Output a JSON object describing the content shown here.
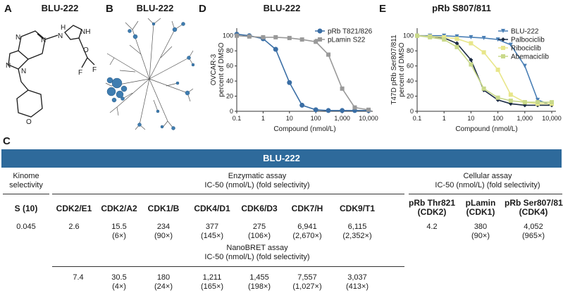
{
  "panels": {
    "A": {
      "letter": "A",
      "title": "BLU-222"
    },
    "B": {
      "letter": "B",
      "title": "BLU-222"
    },
    "D": {
      "letter": "D",
      "title": "BLU-222"
    },
    "E": {
      "letter": "E",
      "title": "pRb S807/811"
    },
    "C": {
      "letter": "C"
    }
  },
  "structure_labels": {
    "nh": "H",
    "nh_ring": "NH",
    "f_top": "F",
    "f_bottom": "F",
    "n1": "N",
    "n2": "N",
    "n3": "N",
    "n4": "N",
    "n5": "N",
    "o_ether": "O",
    "o_ring": "O"
  },
  "chart_data": [
    {
      "type": "line",
      "panel": "D",
      "title": "BLU-222",
      "xlabel": "Compound (nmol/L)",
      "ylabel": "OVCAR-3 percent of DMSO",
      "x_scale": "log",
      "xlim": [
        0.1,
        10000
      ],
      "ylim": [
        0,
        110
      ],
      "x_ticks": [
        "0.1",
        "1",
        "10",
        "100",
        "1,000",
        "10,000"
      ],
      "y_ticks": [
        "0",
        "20",
        "40",
        "60",
        "80",
        "100"
      ],
      "legend_position": "top-right",
      "series": [
        {
          "name": "pRb T821/826",
          "color": "#3a6ea5",
          "marker": "circle",
          "x": [
            0.1,
            0.3,
            1,
            3,
            10,
            30,
            100,
            300,
            1000,
            3000,
            10000
          ],
          "y": [
            102,
            100,
            96,
            82,
            38,
            8,
            2,
            1,
            1,
            1,
            1
          ]
        },
        {
          "name": "pLamin S22",
          "color": "#999999",
          "marker": "square",
          "x": [
            0.1,
            0.3,
            1,
            3,
            10,
            30,
            100,
            300,
            1000,
            3000,
            10000
          ],
          "y": [
            100,
            99,
            98,
            98,
            97,
            95,
            92,
            75,
            30,
            5,
            2
          ]
        }
      ]
    },
    {
      "type": "line",
      "panel": "E",
      "title": "pRb S807/811",
      "xlabel": "Compound (nmol/L)",
      "ylabel": "T47D pRb Ser807/811 percent of DMSO",
      "x_scale": "log",
      "xlim": [
        0.1,
        10000
      ],
      "ylim": [
        0,
        110
      ],
      "x_ticks": [
        "0.1",
        "1",
        "10",
        "100",
        "1,000",
        "10,000"
      ],
      "y_ticks": [
        "0",
        "20",
        "40",
        "60",
        "80",
        "100"
      ],
      "legend_position": "top-right",
      "series": [
        {
          "name": "BLU-222",
          "color": "#4a7fb5",
          "marker": "triangle-down",
          "x": [
            0.1,
            0.3,
            1,
            3,
            10,
            30,
            100,
            300,
            1000,
            3000,
            10000
          ],
          "y": [
            100,
            100,
            100,
            99,
            98,
            97,
            95,
            88,
            60,
            15,
            8
          ]
        },
        {
          "name": "Palbociclib",
          "color": "#1a2a44",
          "marker": "diamond",
          "x": [
            0.1,
            0.3,
            1,
            3,
            10,
            30,
            100,
            300,
            1000,
            3000,
            10000
          ],
          "y": [
            100,
            99,
            97,
            90,
            68,
            28,
            15,
            10,
            8,
            8,
            8
          ]
        },
        {
          "name": "Ribociclib",
          "color": "#e8e68a",
          "marker": "square",
          "x": [
            0.1,
            0.3,
            1,
            3,
            10,
            30,
            100,
            300,
            1000,
            3000,
            10000
          ],
          "y": [
            100,
            99,
            98,
            96,
            90,
            78,
            55,
            22,
            12,
            10,
            10
          ]
        },
        {
          "name": "Abemaciclib",
          "color": "#c9d98a",
          "marker": "square",
          "x": [
            0.1,
            0.3,
            1,
            3,
            10,
            30,
            100,
            300,
            1000,
            3000,
            10000
          ],
          "y": [
            100,
            98,
            95,
            85,
            62,
            30,
            18,
            14,
            12,
            12,
            12
          ]
        }
      ]
    }
  ],
  "table": {
    "banner": "BLU-222",
    "kinome_header": [
      "Kinome",
      "selectivity"
    ],
    "enzymatic_header": [
      "Enzymatic assay",
      "IC-50 (nmol/L) (fold selectivity)"
    ],
    "cellular_header": [
      "Cellular assay",
      "IC-50 (nmol/L) (fold selectivity)"
    ],
    "nanobret_header": [
      "NanoBRET assay",
      "IC-50 (nmol/L) (fold selectivity)"
    ],
    "columns": [
      {
        "label": "S (10)",
        "enz": "0.045",
        "enz_fold": "",
        "nano": "7.4",
        "nano_fold": ""
      },
      {
        "label": "CDK2/E1",
        "enz": "2.6",
        "enz_fold": "",
        "nano": "",
        "nano_fold": ""
      },
      {
        "label": "CDK2/A2",
        "enz": "15.5",
        "enz_fold": "(6×)",
        "nano": "30.5",
        "nano_fold": "(4×)"
      },
      {
        "label": "CDK1/B",
        "enz": "234",
        "enz_fold": "(90×)",
        "nano": "180",
        "nano_fold": "(24×)"
      },
      {
        "label": "CDK4/D1",
        "enz": "377",
        "enz_fold": "(145×)",
        "nano": "1,211",
        "nano_fold": "(165×)"
      },
      {
        "label": "CDK6/D3",
        "enz": "275",
        "enz_fold": "(106×)",
        "nano": "1,455",
        "nano_fold": "(198×)"
      },
      {
        "label": "CDK7/H",
        "enz": "6,941",
        "enz_fold": "(2,670×)",
        "nano": "7,557",
        "nano_fold": "(1,027×)"
      },
      {
        "label": "CDK9/T1",
        "enz": "6,115",
        "enz_fold": "(2,352×)",
        "nano": "3,037",
        "nano_fold": "(413×)"
      }
    ],
    "cellular_columns": [
      {
        "label1": "pRb Thr821",
        "label2": "(CDK2)",
        "value": "4.2",
        "fold": ""
      },
      {
        "label1": "pLamin",
        "label2": "(CDK1)",
        "value": "380",
        "fold": "(90×)"
      },
      {
        "label1": "pRb Ser807/811",
        "label2": "(CDK4)",
        "value": "4,052",
        "fold": "(965×)"
      }
    ]
  }
}
